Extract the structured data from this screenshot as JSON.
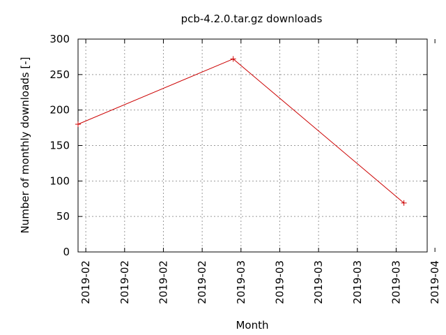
{
  "chart_data": {
    "type": "line",
    "title": "pcb-4.2.0.tar.gz downloads",
    "xlabel": "Month",
    "ylabel": "Number of monthly downloads [-]",
    "ylim": [
      0,
      300
    ],
    "yticks": [
      0,
      50,
      100,
      150,
      200,
      250,
      300
    ],
    "xlim": [
      0,
      9
    ],
    "xticks": [
      {
        "pos": 0.2,
        "label": "2019-02"
      },
      {
        "pos": 1.2,
        "label": "2019-02"
      },
      {
        "pos": 2.2,
        "label": "2019-02"
      },
      {
        "pos": 3.2,
        "label": "2019-02"
      },
      {
        "pos": 4.2,
        "label": "2019-03"
      },
      {
        "pos": 5.2,
        "label": "2019-03"
      },
      {
        "pos": 6.2,
        "label": "2019-03"
      },
      {
        "pos": 7.2,
        "label": "2019-03"
      },
      {
        "pos": 8.2,
        "label": "2019-03"
      },
      {
        "pos": 9.2,
        "label": "2019-04"
      }
    ],
    "grid": true,
    "series": [
      {
        "name": "pcb-4.2.0.tar.gz",
        "color": "#cc0000",
        "x": [
          0,
          4,
          8.4
        ],
        "values": [
          180,
          272,
          69
        ]
      }
    ]
  }
}
